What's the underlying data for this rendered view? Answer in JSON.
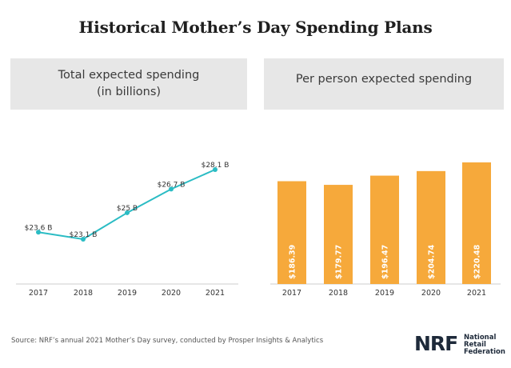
{
  "title": "Historical Mother’s Day Spending Plans",
  "left_panel": {
    "title_line1": "Total expected spending",
    "title_line2": "(in billions)"
  },
  "right_panel": {
    "title": "Per person expected spending"
  },
  "colors": {
    "line": "#2bbcc4",
    "bar": "#f6a93b",
    "axis": "#cccccc",
    "text": "#333333",
    "bar_label": "#ffffff"
  },
  "chart_data": [
    {
      "type": "line",
      "categories": [
        "2017",
        "2018",
        "2019",
        "2020",
        "2021"
      ],
      "values": [
        23.6,
        23.1,
        25,
        26.7,
        28.1
      ],
      "data_labels": [
        "$23.6 B",
        "$23.1 B",
        "$25 B",
        "$26.7 B",
        "$28.1 B"
      ],
      "ylim": [
        21.5,
        28.5
      ],
      "grid": false
    },
    {
      "type": "bar",
      "categories": [
        "2017",
        "2018",
        "2019",
        "2020",
        "2021"
      ],
      "values": [
        186.39,
        179.77,
        196.47,
        204.74,
        220.48
      ],
      "data_labels": [
        "$186.39",
        "$179.77",
        "$196.47",
        "$204.74",
        "$220.48"
      ],
      "ylim": [
        0,
        240
      ],
      "grid": false
    }
  ],
  "source": "Source: NRF’s annual 2021 Mother’s Day survey, conducted by Prosper Insights & Analytics",
  "logo": {
    "mark": "NRF",
    "line1": "National",
    "line2": "Retail",
    "line3": "Federation"
  }
}
